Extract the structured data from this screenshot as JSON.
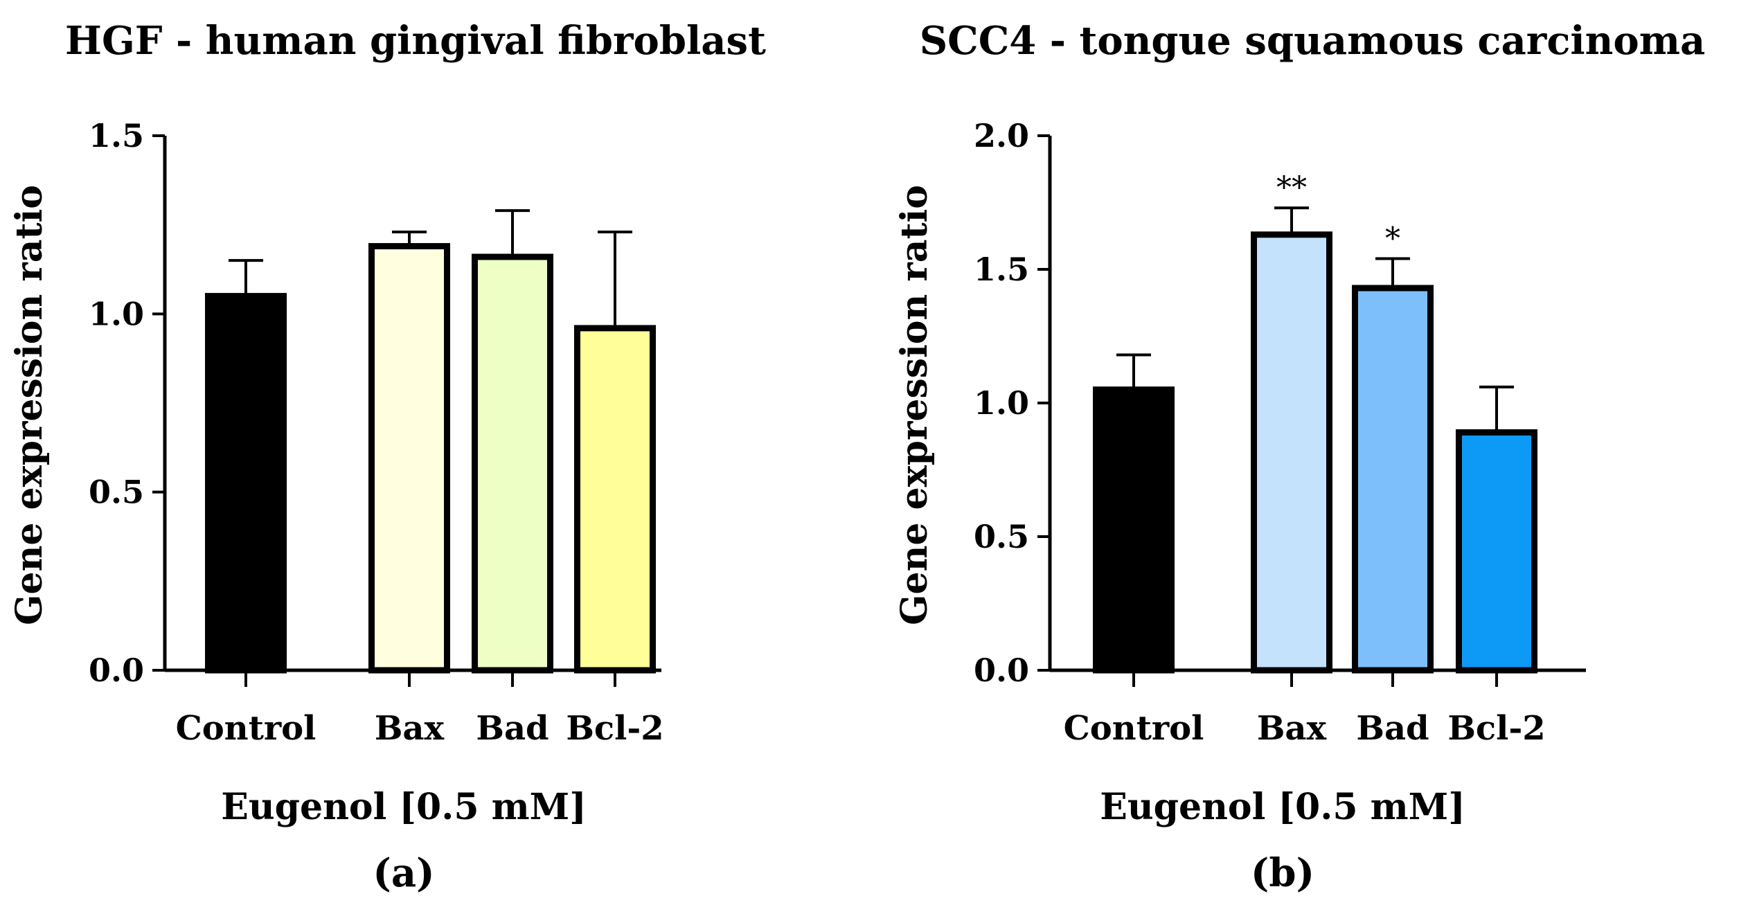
{
  "chart_data": [
    {
      "type": "bar",
      "panel_label": "(a)",
      "title": "HGF - human gingival fibroblast",
      "xlabel": "Eugenol [0.5 mM]",
      "ylabel": "Gene expression ratio",
      "categories": [
        "Control",
        "Bax",
        "Bad",
        "Bcl-2"
      ],
      "values": [
        1.05,
        1.19,
        1.16,
        0.96
      ],
      "errors": [
        0.1,
        0.04,
        0.13,
        0.27
      ],
      "colors": [
        "#000000",
        "#FFFEDF",
        "#EEFFC6",
        "#FFFE99"
      ],
      "significance": [
        "",
        "",
        "",
        ""
      ],
      "ylim": [
        0,
        1.5
      ],
      "yticks": [
        0.0,
        0.5,
        1.0,
        1.5
      ],
      "ytick_labels": [
        "0.0",
        "0.5",
        "1.0",
        "1.5"
      ]
    },
    {
      "type": "bar",
      "panel_label": "(b)",
      "title": "SCC4 - tongue squamous carcinoma",
      "xlabel": "Eugenol [0.5 mM]",
      "ylabel": "Gene expression ratio",
      "categories": [
        "Control",
        "Bax",
        "Bad",
        "Bcl-2"
      ],
      "values": [
        1.05,
        1.63,
        1.43,
        0.89
      ],
      "errors": [
        0.13,
        0.1,
        0.11,
        0.17
      ],
      "colors": [
        "#000000",
        "#C4E2FB",
        "#7DBFFA",
        "#0C9AF6"
      ],
      "significance": [
        "",
        "**",
        "*",
        ""
      ],
      "ylim": [
        0,
        2.0
      ],
      "yticks": [
        0.0,
        0.5,
        1.0,
        1.5,
        2.0
      ],
      "ytick_labels": [
        "0.0",
        "0.5",
        "1.0",
        "1.5",
        "2.0"
      ]
    }
  ]
}
